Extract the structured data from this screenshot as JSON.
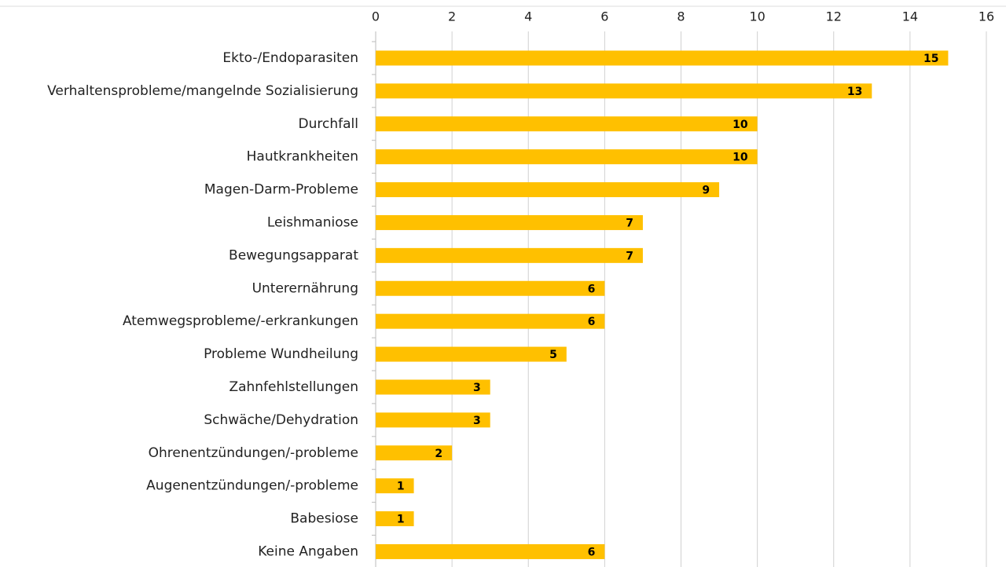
{
  "chart_data": {
    "type": "bar",
    "orientation": "horizontal",
    "categories": [
      "Ekto-/Endoparasiten",
      "Verhaltensprobleme/mangelnde Sozialisierung",
      "Durchfall",
      "Hautkrankheiten",
      "Magen-Darm-Probleme",
      "Leishmaniose",
      "Bewegungsapparat",
      "Unterernährung",
      "Atemwegsprobleme/-erkrankungen",
      "Probleme Wundheilung",
      "Zahnfehlstellungen",
      "Schwäche/Dehydration",
      "Ohrenentzündungen/-probleme",
      "Augenentzündungen/-probleme",
      "Babesiose",
      "Keine Angaben"
    ],
    "values": [
      15,
      13,
      10,
      10,
      9,
      7,
      7,
      6,
      6,
      5,
      3,
      3,
      2,
      1,
      1,
      6
    ],
    "color": "#ffc000",
    "xlim": [
      0,
      16
    ],
    "xticks": [
      0,
      2,
      4,
      6,
      8,
      10,
      12,
      14,
      16
    ],
    "grid": true
  }
}
